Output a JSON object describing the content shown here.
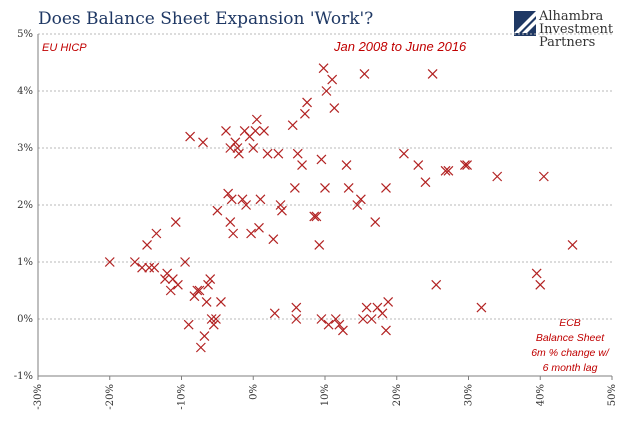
{
  "header": {
    "title": "Does Balance Sheet Expansion 'Work'?"
  },
  "logo": {
    "line1": "Alhambra",
    "line2": "Investment",
    "line3": "Partners"
  },
  "annotations": {
    "series_tag": "EU HICP",
    "period": "Jan 2008  to June 2016",
    "x_note_1": "ECB",
    "x_note_2": "Balance Sheet",
    "x_note_3": "6m % change w/",
    "x_note_4": "6 month lag"
  },
  "colors": {
    "title": "#1f3864",
    "marker": "#b22222",
    "annotation": "#c00000",
    "logo_blue": "#1f3864"
  },
  "chart_data": {
    "type": "scatter",
    "title": "Does Balance Sheet Expansion 'Work'?",
    "xlabel": "ECB Balance Sheet 6m % change w/ 6 month lag",
    "ylabel": "EU HICP",
    "xlim": [
      -30,
      50
    ],
    "ylim": [
      -1,
      5
    ],
    "grid": true,
    "x_ticks": [
      -30,
      -20,
      -10,
      0,
      10,
      20,
      30,
      40,
      50
    ],
    "y_ticks": [
      -1,
      0,
      1,
      2,
      3,
      4,
      5
    ],
    "x_tick_labels": [
      "-30%",
      "-20%",
      "-10%",
      "0%",
      "10%",
      "20%",
      "30%",
      "40%",
      "50%"
    ],
    "y_tick_labels": [
      "-1%",
      "0%",
      "1%",
      "2%",
      "3%",
      "4%",
      "5%"
    ],
    "points": [
      [
        -20,
        1.0
      ],
      [
        -16.5,
        1.0
      ],
      [
        -15.5,
        0.9
      ],
      [
        -14.8,
        1.3
      ],
      [
        -14.5,
        0.9
      ],
      [
        -13.8,
        0.9
      ],
      [
        -13.5,
        1.5
      ],
      [
        -12,
        0.8
      ],
      [
        -12.3,
        0.7
      ],
      [
        -11.5,
        0.5
      ],
      [
        -11.2,
        0.7
      ],
      [
        -10.8,
        1.7
      ],
      [
        -10.5,
        0.6
      ],
      [
        -9.5,
        1.0
      ],
      [
        -9,
        -0.1
      ],
      [
        -8.8,
        3.2
      ],
      [
        -8.2,
        0.4
      ],
      [
        -7.8,
        0.5
      ],
      [
        -7.5,
        0.5
      ],
      [
        -7.3,
        -0.5
      ],
      [
        -7.0,
        3.1
      ],
      [
        -6.8,
        -0.3
      ],
      [
        -6.5,
        0.3
      ],
      [
        -6.3,
        0.6
      ],
      [
        -6.0,
        0.7
      ],
      [
        -5.8,
        0.0
      ],
      [
        -5.5,
        -0.1
      ],
      [
        -5.2,
        0.0
      ],
      [
        -5.0,
        1.9
      ],
      [
        -4.5,
        0.3
      ],
      [
        -3.8,
        3.3
      ],
      [
        -3.5,
        2.2
      ],
      [
        -3.2,
        3.0
      ],
      [
        -3.2,
        1.7
      ],
      [
        -3.0,
        2.1
      ],
      [
        -2.8,
        1.5
      ],
      [
        -2.5,
        3.1
      ],
      [
        -2.2,
        3.0
      ],
      [
        -2.0,
        2.9
      ],
      [
        -1.5,
        2.1
      ],
      [
        -1.2,
        3.3
      ],
      [
        -1.0,
        2.0
      ],
      [
        -0.5,
        3.2
      ],
      [
        -0.3,
        1.5
      ],
      [
        0.0,
        3.0
      ],
      [
        0.3,
        3.3
      ],
      [
        0.5,
        3.5
      ],
      [
        0.8,
        1.6
      ],
      [
        1.0,
        2.1
      ],
      [
        1.5,
        3.3
      ],
      [
        2.0,
        2.9
      ],
      [
        2.8,
        1.4
      ],
      [
        3.0,
        0.1
      ],
      [
        3.5,
        2.9
      ],
      [
        3.8,
        2.0
      ],
      [
        4.0,
        1.9
      ],
      [
        5.5,
        3.4
      ],
      [
        5.8,
        2.3
      ],
      [
        6.0,
        0.0
      ],
      [
        6.0,
        0.2
      ],
      [
        6.2,
        2.9
      ],
      [
        6.8,
        2.7
      ],
      [
        7.2,
        3.6
      ],
      [
        7.5,
        3.8
      ],
      [
        8.5,
        1.8
      ],
      [
        8.8,
        1.8
      ],
      [
        9.2,
        1.3
      ],
      [
        9.5,
        2.8
      ],
      [
        9.5,
        0.0
      ],
      [
        9.8,
        4.4
      ],
      [
        10.0,
        2.3
      ],
      [
        10.2,
        4.0
      ],
      [
        10.5,
        -0.1
      ],
      [
        11.0,
        4.2
      ],
      [
        11.3,
        3.7
      ],
      [
        11.5,
        0.0
      ],
      [
        12.0,
        -0.1
      ],
      [
        12.5,
        -0.2
      ],
      [
        13.0,
        2.7
      ],
      [
        13.3,
        2.3
      ],
      [
        14.5,
        2.0
      ],
      [
        15.0,
        2.1
      ],
      [
        15.3,
        0.0
      ],
      [
        15.5,
        4.3
      ],
      [
        15.8,
        0.2
      ],
      [
        16.5,
        0.0
      ],
      [
        17.0,
        1.7
      ],
      [
        17.3,
        0.2
      ],
      [
        18.0,
        0.1
      ],
      [
        18.5,
        2.3
      ],
      [
        18.8,
        0.3
      ],
      [
        18.5,
        -0.2
      ],
      [
        21.0,
        2.9
      ],
      [
        23.0,
        2.7
      ],
      [
        24.0,
        2.4
      ],
      [
        25.0,
        4.3
      ],
      [
        25.5,
        0.6
      ],
      [
        26.8,
        2.6
      ],
      [
        27.2,
        2.6
      ],
      [
        29.5,
        2.7
      ],
      [
        29.8,
        2.7
      ],
      [
        31.8,
        0.2
      ],
      [
        34.0,
        2.5
      ],
      [
        39.5,
        0.8
      ],
      [
        40.0,
        0.6
      ],
      [
        40.5,
        2.5
      ],
      [
        44.5,
        1.3
      ]
    ]
  }
}
